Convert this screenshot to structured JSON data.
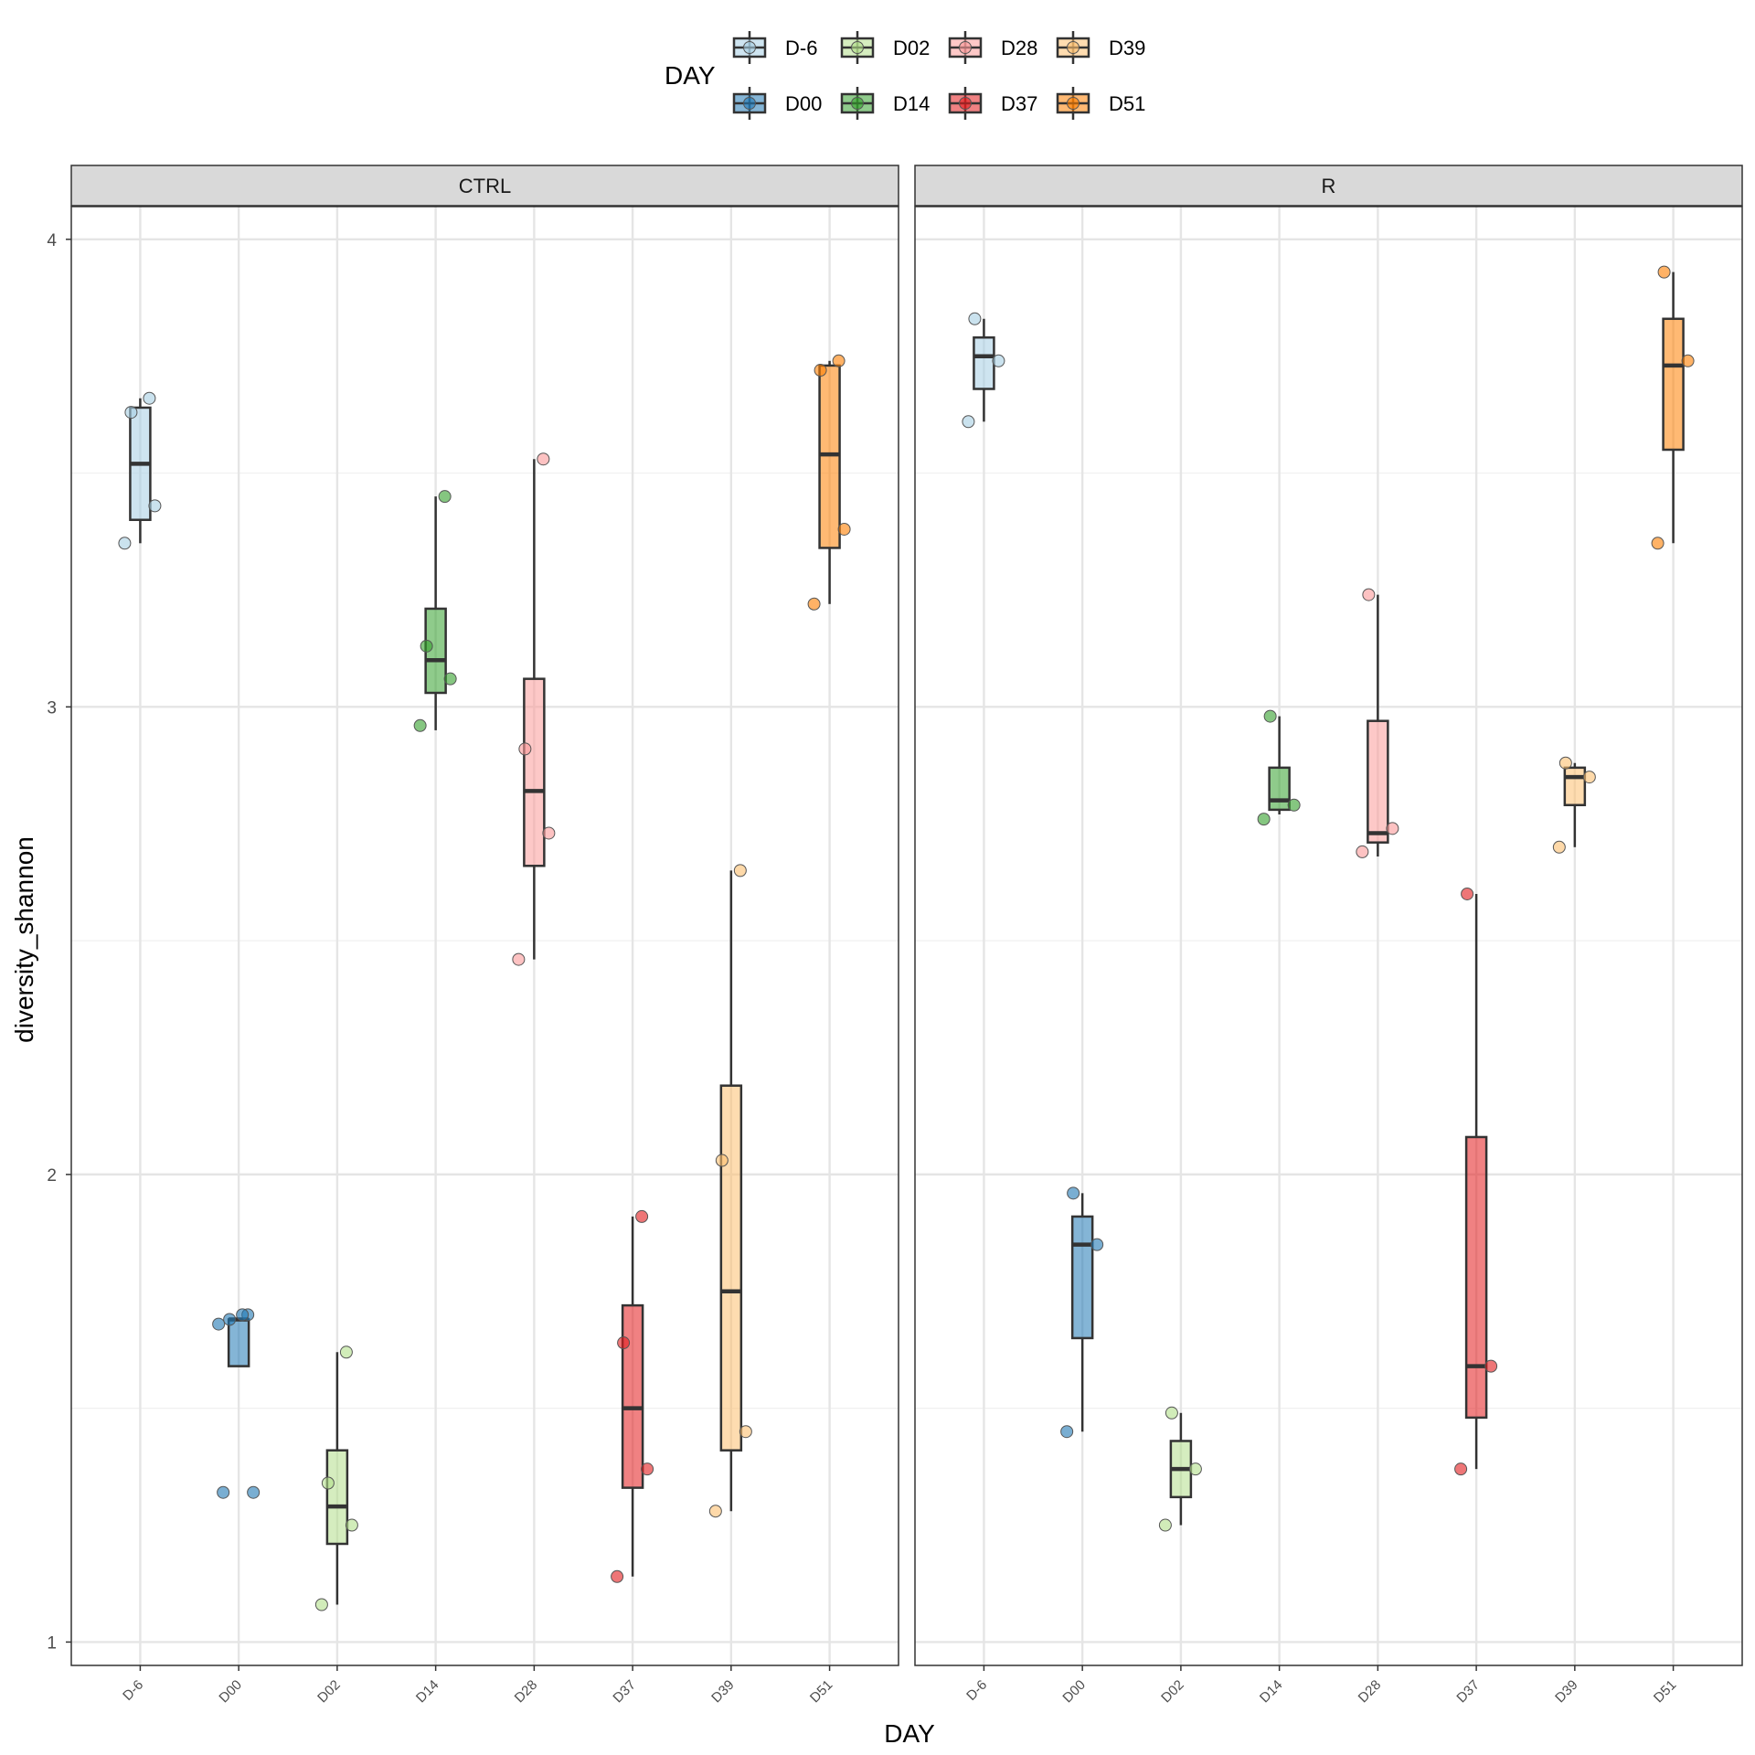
{
  "chart_data": {
    "type": "boxplot",
    "xlabel": "DAY",
    "ylabel": "diversity_shannon",
    "ylim": [
      0.95,
      4.07
    ],
    "yticks": [
      1,
      2,
      3,
      4
    ],
    "grid": true,
    "legend": {
      "title": "DAY",
      "position": "top",
      "items": [
        "D-6",
        "D00",
        "D02",
        "D14",
        "D28",
        "D37",
        "D39",
        "D51"
      ]
    },
    "categories": [
      "D-6",
      "D00",
      "D02",
      "D14",
      "D28",
      "D37",
      "D39",
      "D51"
    ],
    "colors": {
      "D-6": "#a6cee3",
      "D00": "#1f78b4",
      "D02": "#b2df8a",
      "D14": "#33a02c",
      "D28": "#fb9a99",
      "D37": "#e31a1c",
      "D39": "#fdbf6f",
      "D51": "#ff7f00"
    },
    "panels": [
      {
        "name": "CTRL",
        "groups": [
          {
            "day": "D-6",
            "whisker_low": 3.35,
            "q1": 3.4,
            "median": 3.52,
            "q3": 3.64,
            "whisker_high": 3.66,
            "points": [
              3.35,
              3.43,
              3.63,
              3.66
            ]
          },
          {
            "day": "D00",
            "whisker_low": 1.59,
            "q1": 1.59,
            "median": 1.69,
            "q3": 1.69,
            "whisker_high": 1.69,
            "points": [
              1.32,
              1.32,
              1.69,
              1.7,
              1.68,
              1.7
            ]
          },
          {
            "day": "D02",
            "whisker_low": 1.08,
            "q1": 1.21,
            "median": 1.29,
            "q3": 1.41,
            "whisker_high": 1.62,
            "points": [
              1.08,
              1.25,
              1.34,
              1.62
            ]
          },
          {
            "day": "D14",
            "whisker_low": 2.95,
            "q1": 3.03,
            "median": 3.1,
            "q3": 3.21,
            "whisker_high": 3.45,
            "points": [
              2.96,
              3.06,
              3.13,
              3.45
            ]
          },
          {
            "day": "D28",
            "whisker_low": 2.46,
            "q1": 2.66,
            "median": 2.82,
            "q3": 3.06,
            "whisker_high": 3.53,
            "points": [
              2.46,
              2.73,
              2.91,
              3.53
            ]
          },
          {
            "day": "D37",
            "whisker_low": 1.14,
            "q1": 1.33,
            "median": 1.5,
            "q3": 1.72,
            "whisker_high": 1.91,
            "points": [
              1.14,
              1.37,
              1.64,
              1.91
            ]
          },
          {
            "day": "D39",
            "whisker_low": 1.28,
            "q1": 1.41,
            "median": 1.75,
            "q3": 2.19,
            "whisker_high": 2.65,
            "points": [
              1.28,
              1.45,
              2.03,
              2.65
            ]
          },
          {
            "day": "D51",
            "whisker_low": 3.22,
            "q1": 3.34,
            "median": 3.54,
            "q3": 3.73,
            "whisker_high": 3.74,
            "points": [
              3.22,
              3.38,
              3.72,
              3.74
            ]
          }
        ]
      },
      {
        "name": "R",
        "groups": [
          {
            "day": "D-6",
            "whisker_low": 3.61,
            "q1": 3.68,
            "median": 3.75,
            "q3": 3.79,
            "whisker_high": 3.83,
            "points": [
              3.61,
              3.74,
              3.83
            ]
          },
          {
            "day": "D00",
            "whisker_low": 1.45,
            "q1": 1.65,
            "median": 1.85,
            "q3": 1.91,
            "whisker_high": 1.96,
            "points": [
              1.45,
              1.85,
              1.96
            ]
          },
          {
            "day": "D02",
            "whisker_low": 1.25,
            "q1": 1.31,
            "median": 1.37,
            "q3": 1.43,
            "whisker_high": 1.49,
            "points": [
              1.25,
              1.37,
              1.49
            ]
          },
          {
            "day": "D14",
            "whisker_low": 2.77,
            "q1": 2.78,
            "median": 2.8,
            "q3": 2.87,
            "whisker_high": 2.98,
            "points": [
              2.76,
              2.79,
              2.98
            ]
          },
          {
            "day": "D28",
            "whisker_low": 2.68,
            "q1": 2.71,
            "median": 2.73,
            "q3": 2.97,
            "whisker_high": 3.24,
            "points": [
              2.69,
              2.74,
              3.24
            ]
          },
          {
            "day": "D37",
            "whisker_low": 1.37,
            "q1": 1.48,
            "median": 1.59,
            "q3": 2.08,
            "whisker_high": 2.6,
            "points": [
              1.37,
              1.59,
              2.6
            ]
          },
          {
            "day": "D39",
            "whisker_low": 2.7,
            "q1": 2.79,
            "median": 2.85,
            "q3": 2.87,
            "whisker_high": 2.88,
            "points": [
              2.7,
              2.85,
              2.88
            ]
          },
          {
            "day": "D51",
            "whisker_low": 3.35,
            "q1": 3.55,
            "median": 3.73,
            "q3": 3.83,
            "whisker_high": 3.93,
            "points": [
              3.35,
              3.74,
              3.93
            ]
          }
        ]
      }
    ]
  }
}
